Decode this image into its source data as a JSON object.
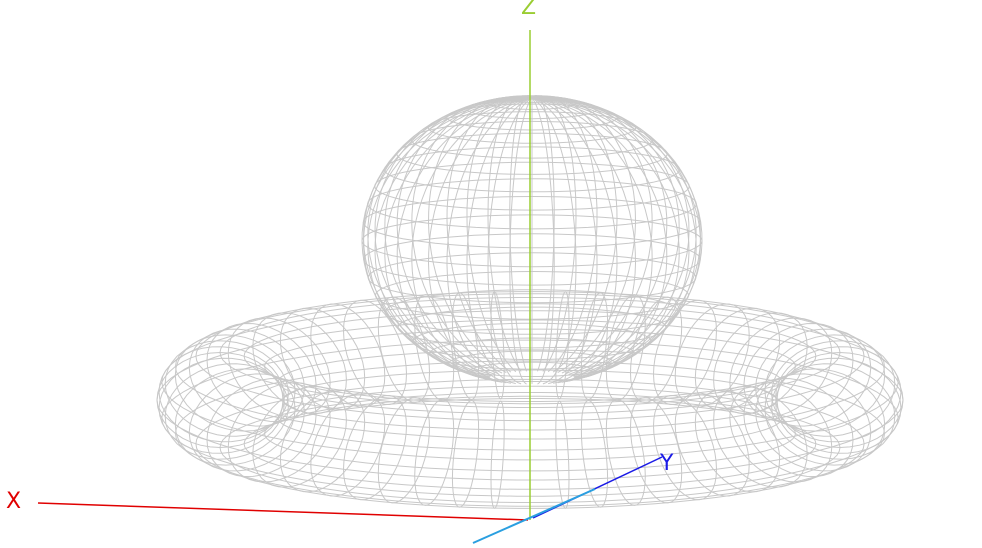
{
  "scene": {
    "type": "3d-radiation-pattern-wireframe",
    "background_color": "#ffffff",
    "mesh_color": "#c8c8c8",
    "components": [
      "main-lobe",
      "toroidal-side-lobe"
    ]
  },
  "axes": {
    "x": {
      "label": "X",
      "color": "#e00000"
    },
    "y": {
      "label": "Y",
      "color": "#1a1ae6"
    },
    "z": {
      "label": "Z",
      "color": "#9acd32"
    },
    "origin_marker_color": "#2a9fe0"
  }
}
